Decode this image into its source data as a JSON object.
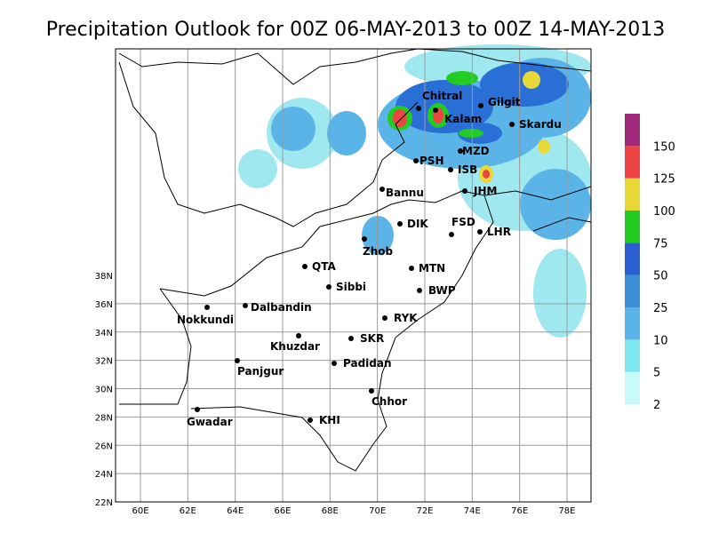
{
  "title": "Precipitation Outlook for 00Z 06-MAY-2013 to 00Z 14-MAY-2013",
  "lon_labels": [
    "60E",
    "62E",
    "64E",
    "66E",
    "68E",
    "70E",
    "72E",
    "74E",
    "76E",
    "78E"
  ],
  "lat_labels": [
    "22N",
    "24N",
    "26N",
    "28N",
    "30N",
    "32N",
    "34N",
    "36N",
    "38N"
  ],
  "cities": [
    "Chitral",
    "Gilgit",
    "Kalam",
    "Skardu",
    "MZD",
    "PSH",
    "ISB",
    "JHM",
    "Bannu",
    "DIK",
    "FSD",
    "LHR",
    "Zhob",
    "QTA",
    "MTN",
    "Sibbi",
    "BWP",
    "Nokkundi",
    "Dalbandin",
    "RYK",
    "Khuzdar",
    "SKR",
    "Panjgur",
    "Padidan",
    "Chhor",
    "KHI",
    "Gwadar"
  ],
  "legend": {
    "levels": [
      2,
      5,
      10,
      25,
      50,
      75,
      100,
      125,
      150
    ]
  }
}
